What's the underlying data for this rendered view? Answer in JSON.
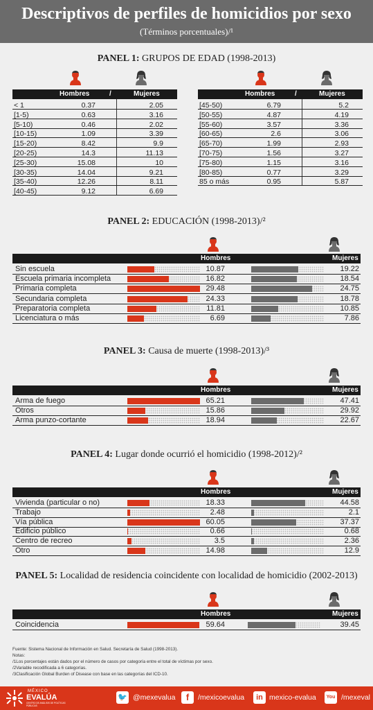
{
  "title": "Descriptivos de perfiles de homicidios por sexo",
  "subtitle": "(Términos porcentuales)/¹",
  "labels": {
    "hombres": "Hombres",
    "mujeres": "Mujeres",
    "sep": "/"
  },
  "colors": {
    "hombres": "#d9361a",
    "mujeres": "#6b6b6b"
  },
  "panel1": {
    "title_bold": "PANEL 1:",
    "title_rest": " GRUPOS DE EDAD (1998-2013)"
  },
  "panel2": {
    "title_bold": "PANEL 2:",
    "title_rest": " EDUCACIÓN (1998-2013)/²"
  },
  "panel3": {
    "title_bold": "PANEL 3:",
    "title_rest": " Causa de muerte (1998-2013)/³"
  },
  "panel4": {
    "title_bold": "PANEL 4:",
    "title_rest": " Lugar donde ocurrió el homicidio (1998-2012)/²"
  },
  "panel5": {
    "title_bold": "PANEL 5:",
    "title_rest": " Localidad de residencia coincidente con localidad de homicidio (2002-2013)"
  },
  "chart_data": [
    {
      "type": "table",
      "title": "PANEL 1: GRUPOS DE EDAD (1998-2013)",
      "columns": [
        "",
        "Hombres",
        "Mujeres"
      ],
      "rows": [
        [
          "< 1",
          "0.37",
          "2.05"
        ],
        [
          "[1-5)",
          "0.63",
          "3.16"
        ],
        [
          "[5-10)",
          "0.46",
          "2.02"
        ],
        [
          "[10-15)",
          "1.09",
          "3.39"
        ],
        [
          "[15-20)",
          "8.42",
          "9.9"
        ],
        [
          "[20-25)",
          "14.3",
          "11.13"
        ],
        [
          "[25-30)",
          "15.08",
          "10"
        ],
        [
          "[30-35)",
          "14.04",
          "9.21"
        ],
        [
          "[35-40)",
          "12.26",
          "8.11"
        ],
        [
          "[40-45)",
          "9.12",
          "6.69"
        ],
        [
          "[45-50)",
          "6.79",
          "5.2"
        ],
        [
          "[50-55)",
          "4.87",
          "4.19"
        ],
        [
          "[55-60)",
          "3.57",
          "3.36"
        ],
        [
          "[60-65)",
          "2.6",
          "3.06"
        ],
        [
          "[65-70)",
          "1.99",
          "2.93"
        ],
        [
          "[70-75)",
          "1.56",
          "3.27"
        ],
        [
          "[75-80)",
          "1.15",
          "3.16"
        ],
        [
          "[80-85)",
          "0.77",
          "3.29"
        ],
        [
          "85 o más",
          "0.95",
          "5.87"
        ]
      ]
    },
    {
      "type": "bar",
      "title": "PANEL 2: EDUCACIÓN (1998-2013)/²",
      "categories": [
        "Sin escuela",
        "Escuela primaria incompleta",
        "Primaria completa",
        "Secundaria completa",
        "Preparatoria completa",
        "Licenciatura o más"
      ],
      "series": [
        {
          "name": "Hombres",
          "values": [
            10.87,
            16.82,
            29.48,
            24.33,
            11.81,
            6.69
          ],
          "labels": [
            "10.87",
            "16.82",
            "29.48",
            "24.33",
            "11.81",
            "6.69"
          ]
        },
        {
          "name": "Mujeres",
          "values": [
            19.22,
            18.54,
            24.75,
            18.78,
            10.85,
            7.86
          ],
          "labels": [
            "19.22",
            "18.54",
            "24.75",
            "18.78",
            "10.85",
            "7.86"
          ]
        }
      ]
    },
    {
      "type": "bar",
      "title": "PANEL 3: Causa de muerte (1998-2013)/³",
      "categories": [
        "Arma de fuego",
        "Otros",
        "Arma punzo-cortante"
      ],
      "series": [
        {
          "name": "Hombres",
          "values": [
            65.21,
            15.86,
            18.94
          ],
          "labels": [
            "65.21",
            "15.86",
            "18.94"
          ]
        },
        {
          "name": "Mujeres",
          "values": [
            47.41,
            29.92,
            22.67
          ],
          "labels": [
            "47.41",
            "29.92",
            "22.67"
          ]
        }
      ]
    },
    {
      "type": "bar",
      "title": "PANEL 4: Lugar donde ocurrió el homicidio (1998-2012)/²",
      "categories": [
        "Vivienda (particular o no)",
        "Trabajo",
        "Vía pública",
        "Edificio público",
        "Centro de recreo",
        "Otro"
      ],
      "series": [
        {
          "name": "Hombres",
          "values": [
            18.33,
            2.48,
            60.05,
            0.66,
            3.5,
            14.98
          ],
          "labels": [
            "18.33",
            "2.48",
            "60.05",
            "0.66",
            "3.5",
            "14.98"
          ]
        },
        {
          "name": "Mujeres",
          "values": [
            44.58,
            2.1,
            37.37,
            0.68,
            2.36,
            12.9
          ],
          "labels": [
            "44.58",
            "2.1",
            "37.37",
            "0.68",
            "2.36",
            "12.9"
          ]
        }
      ]
    },
    {
      "type": "bar",
      "title": "PANEL 5: Localidad de residencia coincidente con localidad de homicidio (2002-2013)",
      "categories": [
        "Coincidencia"
      ],
      "series": [
        {
          "name": "Hombres",
          "values": [
            59.64
          ],
          "labels": [
            "59.64"
          ]
        },
        {
          "name": "Mujeres",
          "values": [
            39.45
          ],
          "labels": [
            "39.45"
          ]
        }
      ]
    }
  ],
  "notes": [
    "Fuente: Sistema Nacional de Información en Salud. Secretaría de Salud (1998-2013).",
    "Notas:",
    "/1Los porcentajes están dados por el número de casos por categoría entre el total de víctimas por sexo.",
    "/2Variable recodificada a 6 categorías.",
    "/3Clasificación Global Burden of Disease con base en las categorías del ICD-10."
  ],
  "footer": {
    "logo_top": "MÉXICO",
    "logo_main": "EVALÚA",
    "logo_sub": "CENTRO DE ANÁLISIS DE POLÍTICAS PÚBLICAS",
    "twitter": "@mexevalua",
    "facebook": "/mexicoevalua",
    "linkedin": "mexico-evalua",
    "youtube": "/mexeval",
    "tw_icon": "🐦",
    "fb_icon": "f",
    "in_icon": "in",
    "yt_icon": "You"
  }
}
